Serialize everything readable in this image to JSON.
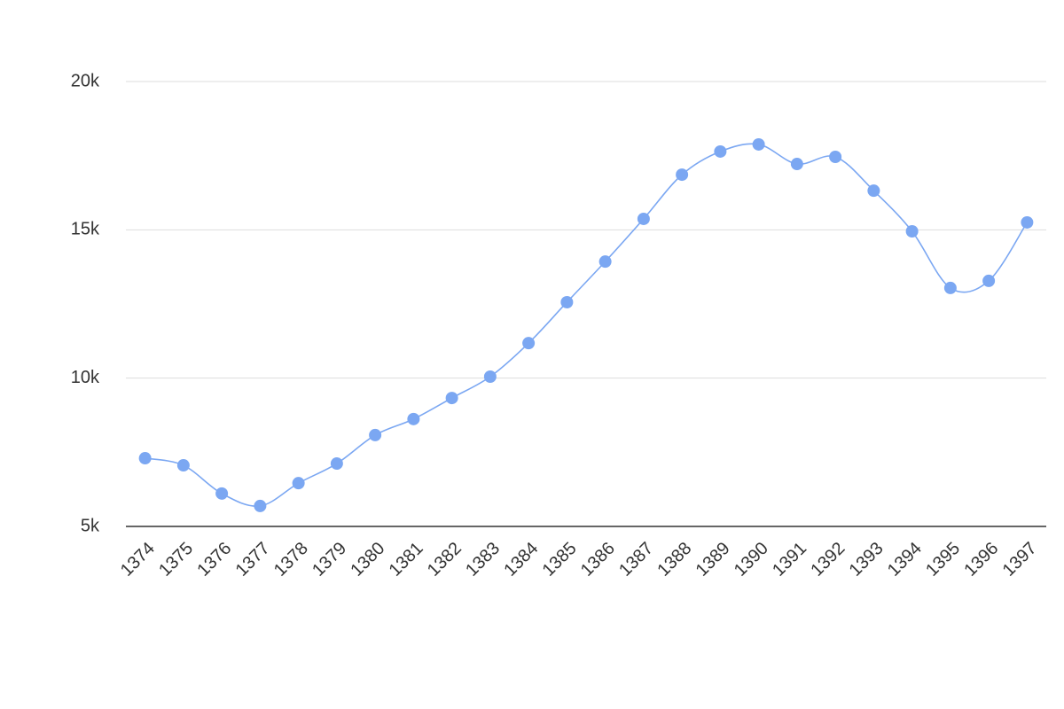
{
  "chart_data": {
    "type": "line",
    "categories": [
      "1374",
      "1375",
      "1376",
      "1377",
      "1378",
      "1379",
      "1380",
      "1381",
      "1382",
      "1383",
      "1384",
      "1385",
      "1386",
      "1387",
      "1388",
      "1389",
      "1390",
      "1391",
      "1392",
      "1393",
      "1394",
      "1395",
      "1396",
      "1397"
    ],
    "series": [
      {
        "color": "#7ba7f2",
        "values": [
          7300,
          7060,
          6110,
          5690,
          6460,
          7120,
          8080,
          8620,
          9330,
          10050,
          11180,
          12560,
          13930,
          15370,
          16860,
          17640,
          17880,
          17220,
          17460,
          16320,
          14950,
          13040,
          13280,
          15250
        ]
      }
    ],
    "ylim": [
      5000,
      20000
    ],
    "yticks": [
      {
        "value": 5000,
        "label": "5k"
      },
      {
        "value": 10000,
        "label": "10k"
      },
      {
        "value": 15000,
        "label": "15k"
      },
      {
        "value": 20000,
        "label": "20k"
      }
    ],
    "grid": true
  }
}
